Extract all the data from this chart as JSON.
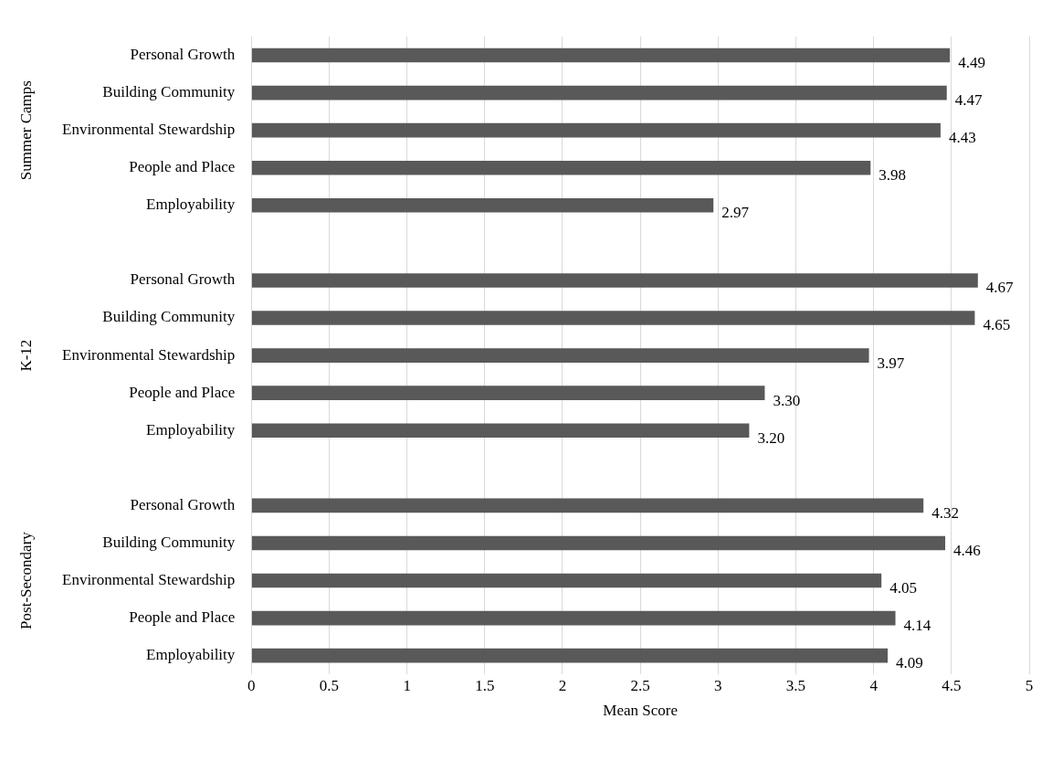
{
  "chart_data": {
    "type": "bar",
    "orientation": "horizontal",
    "xlabel": "Mean Score",
    "categories": [
      "Personal Growth",
      "Building Community",
      "Environmental Stewardship",
      "People and Place",
      "Employability",
      null,
      "Personal Growth",
      "Building Community",
      "Environmental Stewardship",
      "People and Place",
      "Employability",
      null,
      "Personal Growth",
      "Building Community",
      "Environmental Stewardship",
      "People and Place",
      "Employability"
    ],
    "values": [
      4.49,
      4.47,
      4.43,
      3.98,
      2.97,
      null,
      4.67,
      4.65,
      3.97,
      3.3,
      3.2,
      null,
      4.32,
      4.46,
      4.05,
      4.14,
      4.09
    ],
    "value_labels": [
      "4.49",
      "4.47",
      "4.43",
      "3.98",
      "2.97",
      null,
      "4.67",
      "4.65",
      "3.97",
      "3.30",
      "3.20",
      null,
      "4.32",
      "4.46",
      "4.05",
      "4.14",
      "4.09"
    ],
    "color": "#595959",
    "annotations": [
      "Summer Camps",
      "K-12",
      "Post-Secondary"
    ],
    "xlim": [
      0,
      5
    ],
    "xticks": [
      0,
      0.5,
      1,
      1.5,
      2,
      2.5,
      3,
      3.5,
      4,
      4.5,
      5
    ],
    "grid": "x",
    "legend": false
  }
}
